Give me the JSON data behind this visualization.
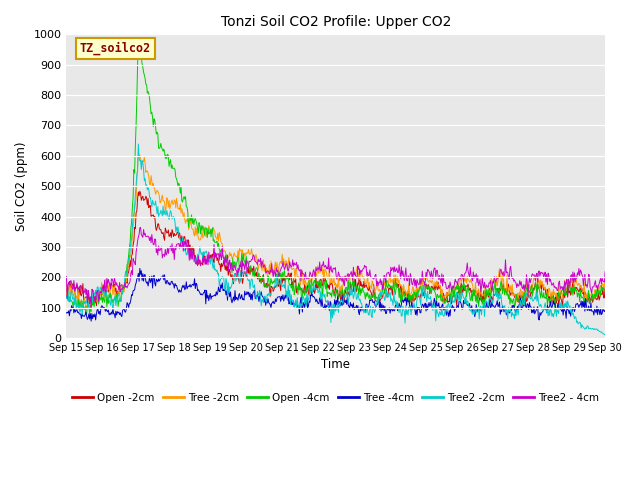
{
  "title": "Tonzi Soil CO2 Profile: Upper CO2",
  "xlabel": "Time",
  "ylabel": "Soil CO2 (ppm)",
  "ylim": [
    0,
    1000
  ],
  "xlim": [
    0,
    15
  ],
  "plot_bg": "#e8e8e8",
  "fig_bg": "#e8e8e8",
  "series": [
    {
      "label": "Open -2cm",
      "color": "#cc0000"
    },
    {
      "label": "Tree -2cm",
      "color": "#ff9900"
    },
    {
      "label": "Open -4cm",
      "color": "#00cc00"
    },
    {
      "label": "Tree -4cm",
      "color": "#0000cc"
    },
    {
      "label": "Tree2 -2cm",
      "color": "#00cccc"
    },
    {
      "label": "Tree2 - 4cm",
      "color": "#cc00cc"
    }
  ],
  "xtick_labels": [
    "Sep 15",
    "Sep 16",
    "Sep 17",
    "Sep 18",
    "Sep 19",
    "Sep 20",
    "Sep 21",
    "Sep 22",
    "Sep 23",
    "Sep 24",
    "Sep 25",
    "Sep 26",
    "Sep 27",
    "Sep 28",
    "Sep 29",
    "Sep 30"
  ],
  "ytick_labels": [
    "0",
    "100",
    "200",
    "300",
    "400",
    "500",
    "600",
    "700",
    "800",
    "900",
    "1000"
  ],
  "ytick_vals": [
    0,
    100,
    200,
    300,
    400,
    500,
    600,
    700,
    800,
    900,
    1000
  ],
  "dataset_label": "TZ_soilco2",
  "dataset_label_color": "#8b0000",
  "dataset_label_bg": "#ffffcc",
  "dataset_label_edge": "#cc9900"
}
